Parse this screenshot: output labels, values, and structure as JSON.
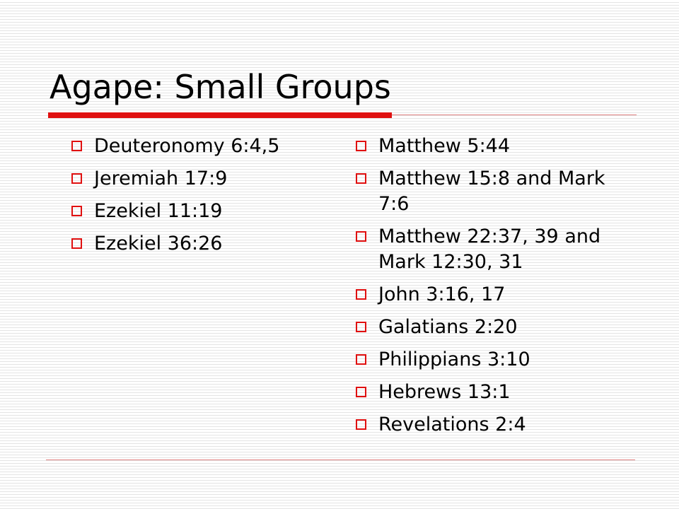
{
  "title": "Agape: Small Groups",
  "left_list": [
    "Deuteronomy 6:4,5",
    "Jeremiah 17:9",
    "Ezekiel 11:19",
    "Ezekiel 36:26"
  ],
  "right_list": [
    "Matthew 5:44",
    "Matthew 15:8 and Mark 7:6",
    "Matthew 22:37, 39 and Mark 12:30, 31",
    "John 3:16, 17",
    "Galatians 2:20",
    "Philippians 3:10",
    "Hebrews 13:1",
    "Revelations 2:4"
  ]
}
